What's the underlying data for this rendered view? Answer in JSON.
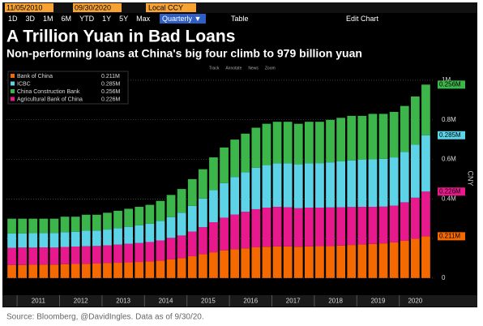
{
  "toolbar": {
    "start_date": "11/05/2010",
    "end_date": "09/30/2020",
    "currency": "Local CCY",
    "ranges": [
      "1D",
      "3D",
      "1M",
      "6M",
      "YTD",
      "1Y",
      "5Y",
      "Max"
    ],
    "frequency": "Quarterly ▼",
    "table": "Table",
    "edit": "Edit Chart",
    "tools": [
      "Track",
      "Annotate",
      "News",
      "Zoom"
    ]
  },
  "chart_data": {
    "type": "stacked-bar",
    "title": "A Trillion Yuan in Bad Loans",
    "subtitle": "Non-performing loans at China's big four climb to 979 billion yuan",
    "y_label": "CNY",
    "categories": [
      null,
      null,
      null,
      null,
      null,
      null,
      null,
      null,
      null,
      null,
      null,
      null,
      null,
      null,
      null,
      null,
      null,
      null,
      null,
      null,
      null,
      null,
      null,
      null,
      null,
      null,
      null,
      null,
      null,
      null,
      null,
      null,
      null,
      null,
      null,
      null,
      null,
      null,
      null,
      null
    ],
    "year_labels": [
      "2011",
      "2012",
      "2013",
      "2014",
      "2015",
      "2016",
      "2017",
      "2018",
      "2019",
      "2020"
    ],
    "ylim": [
      -0.05,
      1.045
    ],
    "yticks": [
      0,
      {
        "value": 0.2,
        "label": "0.2M"
      },
      {
        "value": 0.4,
        "label": "0.4M"
      },
      {
        "value": 0.6,
        "label": "0.6M"
      },
      {
        "value": 0.8,
        "label": "0.8M"
      },
      {
        "value": 1,
        "label": "1M"
      }
    ],
    "grid": true,
    "series": [
      {
        "name": "Bank of China",
        "color": "#f56a00",
        "last_label": "0.211M",
        "values": [
          0.065,
          0.066,
          0.067,
          0.068,
          0.068,
          0.07,
          0.071,
          0.072,
          0.073,
          0.075,
          0.077,
          0.079,
          0.081,
          0.084,
          0.088,
          0.095,
          0.1,
          0.11,
          0.12,
          0.13,
          0.14,
          0.146,
          0.15,
          0.155,
          0.158,
          0.16,
          0.16,
          0.158,
          0.16,
          0.161,
          0.162,
          0.164,
          0.167,
          0.17,
          0.172,
          0.175,
          0.18,
          0.188,
          0.198,
          0.211
        ]
      },
      {
        "name": "ICBC",
        "color": "#5cd3e6",
        "last_label": "0.285M",
        "values": [
          0.072,
          0.072,
          0.073,
          0.073,
          0.074,
          0.075,
          0.075,
          0.078,
          0.078,
          0.08,
          0.083,
          0.086,
          0.09,
          0.093,
          0.098,
          0.105,
          0.115,
          0.13,
          0.145,
          0.162,
          0.175,
          0.19,
          0.2,
          0.21,
          0.215,
          0.22,
          0.222,
          0.222,
          0.224,
          0.225,
          0.228,
          0.232,
          0.236,
          0.238,
          0.24,
          0.242,
          0.244,
          0.255,
          0.268,
          0.285
        ]
      },
      {
        "name": "China Construction Bank",
        "color": "#3cb54a",
        "last_label": "0.256M",
        "values": [
          0.075,
          0.074,
          0.073,
          0.072,
          0.072,
          0.078,
          0.076,
          0.081,
          0.08,
          0.085,
          0.088,
          0.091,
          0.093,
          0.095,
          0.102,
          0.112,
          0.12,
          0.135,
          0.148,
          0.166,
          0.18,
          0.189,
          0.195,
          0.202,
          0.209,
          0.21,
          0.21,
          0.205,
          0.21,
          0.209,
          0.215,
          0.22,
          0.225,
          0.222,
          0.23,
          0.227,
          0.23,
          0.232,
          0.244,
          0.256
        ]
      },
      {
        "name": "Agricultural Bank of China",
        "color": "#e8198c",
        "last_label": "0.226M",
        "values": [
          0.088,
          0.088,
          0.087,
          0.087,
          0.086,
          0.087,
          0.088,
          0.089,
          0.089,
          0.09,
          0.092,
          0.094,
          0.096,
          0.098,
          0.102,
          0.108,
          0.115,
          0.125,
          0.137,
          0.152,
          0.165,
          0.175,
          0.185,
          0.193,
          0.198,
          0.2,
          0.198,
          0.195,
          0.196,
          0.195,
          0.195,
          0.194,
          0.192,
          0.19,
          0.188,
          0.186,
          0.186,
          0.195,
          0.208,
          0.226
        ]
      }
    ]
  },
  "footer": {
    "source": "Source: Bloomberg, @DavidIngles. Data as of 9/30/20."
  }
}
